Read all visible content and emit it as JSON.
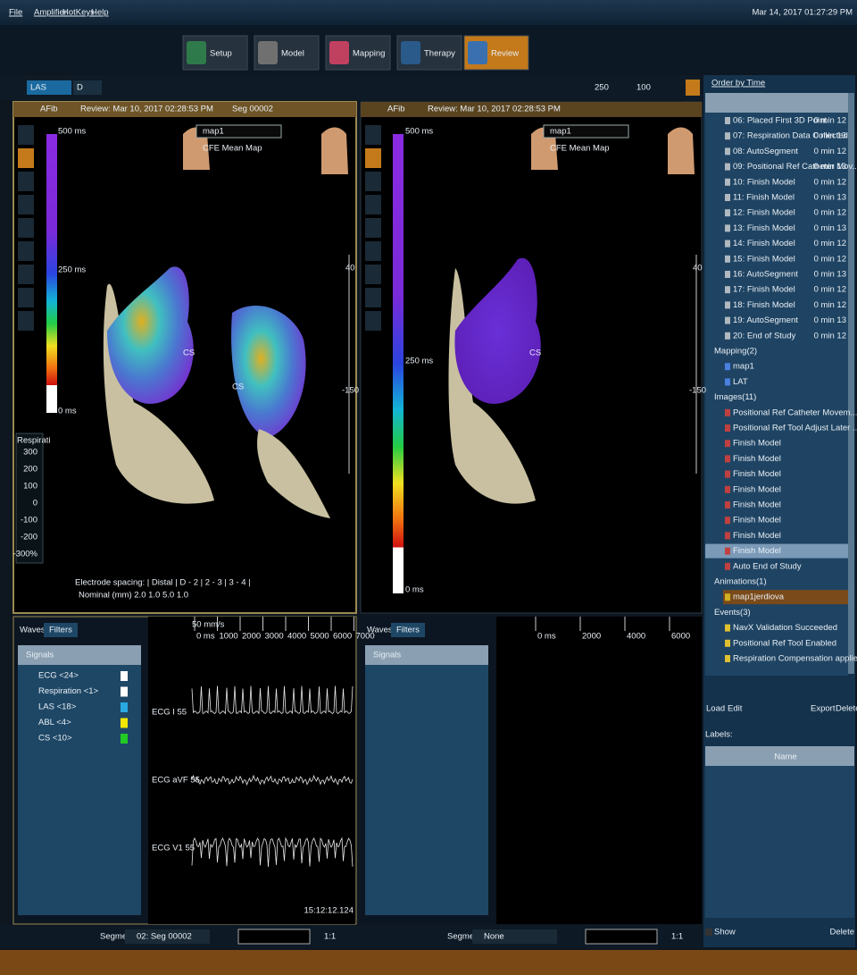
{
  "menu": [
    "File",
    "Amplifier",
    "HotKeys",
    "Help"
  ],
  "clock": "Mar 14, 2017 01:27:29 PM",
  "tabs": [
    "Setup",
    "Model",
    "Mapping",
    "Therapy",
    "Review"
  ],
  "toolbar": {
    "map_select": "LAS",
    "catheter_select": "D",
    "value_a": "250",
    "value_b": "100"
  },
  "left_view": {
    "rhythm": "AFib",
    "review": "Review: Mar 10, 2017 02:28:53 PM",
    "segment": "Seg 00002",
    "map": "map1",
    "map_type": "CFE Mean Map",
    "scale_labels": [
      "500 ms",
      "250 ms",
      "0 ms"
    ],
    "resp_title": "Respirati",
    "resp_ticks": [
      "300",
      "200",
      "100",
      "0",
      "-100",
      "-200",
      "-300%"
    ],
    "cs_labels": [
      "CS",
      "CS"
    ],
    "spacing": "Electrode spacing: | Distal | D - 2 | 2 - 3 | 3 - 4 |",
    "nominal": "Nominal (mm)     2.0     1.0     5.0     1.0",
    "slider": [
      "40",
      "-150"
    ]
  },
  "right_view": {
    "rhythm": "AFib",
    "review": "Review: Mar 10, 2017 02:28:53 PM",
    "map": "map1",
    "map_type": "CFE Mean Map",
    "scale_labels": [
      "500 ms",
      "250 ms",
      "0 ms"
    ],
    "cs_label": "CS",
    "slider": [
      "40",
      "-150"
    ]
  },
  "left_waves": {
    "tabs": [
      "Waves",
      "Filters"
    ],
    "signals_header": "Signals",
    "signals": [
      {
        "name": "ECG <24>",
        "color": "#ffffff"
      },
      {
        "name": "Respiration <1>",
        "color": "#ffffff"
      },
      {
        "name": "LAS <18>",
        "color": "#29a9e0"
      },
      {
        "name": "ABL <4>",
        "color": "#f2e600"
      },
      {
        "name": "CS <10>",
        "color": "#22cc22"
      }
    ],
    "speed": "50 mm/s",
    "time_ticks": [
      "0 ms",
      "1000",
      "2000",
      "3000",
      "4000",
      "5000",
      "6000",
      "7000"
    ],
    "channels": [
      "ECG I 55",
      "ECG aVF 55",
      "ECG V1 55"
    ],
    "timestamp": "15:12:12.124",
    "segment_label": "Segment",
    "segment": "02: Seg 00002",
    "zoom": "1:1"
  },
  "right_waves": {
    "tabs": [
      "Waves",
      "Filters"
    ],
    "signals_header": "Signals",
    "time_ticks": [
      "0 ms",
      "2000",
      "4000",
      "6000"
    ],
    "segment_label": "Segment",
    "segment": "None",
    "zoom": "1:1"
  },
  "sidebar": {
    "order_label": "Order by Time",
    "items": [
      {
        "label": "06: Placed First 3D Point",
        "time": "0 min 12"
      },
      {
        "label": "07: Respiration Data Collected",
        "time": "0 min 13"
      },
      {
        "label": "08: AutoSegment",
        "time": "0 min 12"
      },
      {
        "label": "09: Positional Ref Catheter Mov...",
        "time": "0 min 13"
      },
      {
        "label": "10: Finish Model",
        "time": "0 min 12"
      },
      {
        "label": "11: Finish Model",
        "time": "0 min 13"
      },
      {
        "label": "12: Finish Model",
        "time": "0 min 12"
      },
      {
        "label": "13: Finish Model",
        "time": "0 min 13"
      },
      {
        "label": "14: Finish Model",
        "time": "0 min 12"
      },
      {
        "label": "15: Finish Model",
        "time": "0 min 12"
      },
      {
        "label": "16: AutoSegment",
        "time": "0 min 13"
      },
      {
        "label": "17: Finish Model",
        "time": "0 min 12"
      },
      {
        "label": "18: Finish Model",
        "time": "0 min 12"
      },
      {
        "label": "19: AutoSegment",
        "time": "0 min 13"
      },
      {
        "label": "20: End of Study",
        "time": "0 min 12"
      }
    ],
    "groups": [
      {
        "title": "Mapping(2)",
        "items": [
          "map1",
          "LAT"
        ]
      },
      {
        "title": "Images(11)",
        "items": [
          "Positional Ref Catheter Movem...",
          "Positional Ref Tool Adjust Later ...",
          "Finish Model",
          "Finish Model",
          "Finish Model",
          "Finish Model",
          "Finish Model",
          "Finish Model",
          "Finish Model",
          "Finish Model",
          "Auto End of Study"
        ]
      },
      {
        "title": "Animations(1)",
        "items": [
          "map1jerdiova"
        ]
      },
      {
        "title": "Events(3)",
        "items": [
          "NavX Validation Succeeded",
          "Positional Ref Tool Enabled",
          "Respiration Compensation applied"
        ]
      }
    ],
    "buttons": [
      "Load",
      "Edit",
      "Export",
      "Delete"
    ],
    "labels_title": "Labels:",
    "name_column": "Name",
    "show": "Show",
    "delete": "Delete"
  }
}
